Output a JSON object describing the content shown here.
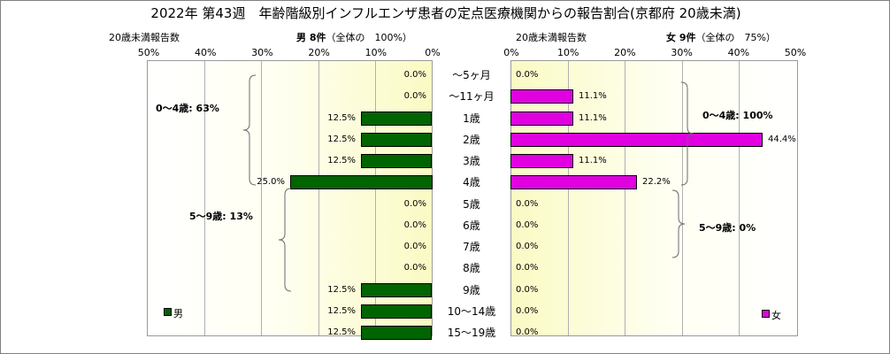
{
  "title": "2022年 第43週　年齢階級別インフルエンザ患者の定点医療機関からの報告割合(京都府 20歳未満)",
  "colors": {
    "male": "#006400",
    "female": "#e000e0"
  },
  "chart_data": [
    {
      "type": "bar",
      "orientation": "horizontal",
      "side": "left",
      "axis_caption": "20歳未満報告数",
      "header_label": "男 8件",
      "header_share": "（全体の　100%）",
      "legend": "男",
      "xlim": [
        0,
        50
      ],
      "tick_labels": [
        "50%",
        "40%",
        "30%",
        "20%",
        "10%",
        "0%"
      ],
      "categories": [
        "～5ヶ月",
        "～11ヶ月",
        "1歳",
        "2歳",
        "3歳",
        "4歳",
        "5歳",
        "6歳",
        "7歳",
        "8歳",
        "9歳",
        "10～14歳",
        "15～19歳"
      ],
      "values": [
        0,
        0,
        12.5,
        12.5,
        12.5,
        25.0,
        0,
        0,
        0,
        0,
        12.5,
        12.5,
        12.5
      ],
      "value_labels": [
        "0.0%",
        "0.0%",
        "12.5%",
        "12.5%",
        "12.5%",
        "25.0%",
        "0.0%",
        "0.0%",
        "0.0%",
        "0.0%",
        "12.5%",
        "12.5%",
        "12.5%"
      ],
      "annotations": [
        "0～4歳: 63%",
        "5～9歳: 13%"
      ]
    },
    {
      "type": "bar",
      "orientation": "horizontal",
      "side": "right",
      "axis_caption": "20歳未満報告数",
      "header_label": "女 9件",
      "header_share": "（全体の　75%）",
      "legend": "女",
      "xlim": [
        0,
        50
      ],
      "tick_labels": [
        "0%",
        "10%",
        "20%",
        "30%",
        "40%",
        "50%"
      ],
      "categories": [
        "～5ヶ月",
        "～11ヶ月",
        "1歳",
        "2歳",
        "3歳",
        "4歳",
        "5歳",
        "6歳",
        "7歳",
        "8歳",
        "9歳",
        "10～14歳",
        "15～19歳"
      ],
      "values": [
        0,
        11.1,
        11.1,
        44.4,
        11.1,
        22.2,
        0,
        0,
        0,
        0,
        0,
        0,
        0
      ],
      "value_labels": [
        "0.0%",
        "11.1%",
        "11.1%",
        "44.4%",
        "11.1%",
        "22.2%",
        "0.0%",
        "0.0%",
        "0.0%",
        "0.0%",
        "0.0%",
        "0.0%",
        "0.0%"
      ],
      "annotations": [
        "0～4歳: 100%",
        "5～9歳: 0%"
      ]
    }
  ]
}
